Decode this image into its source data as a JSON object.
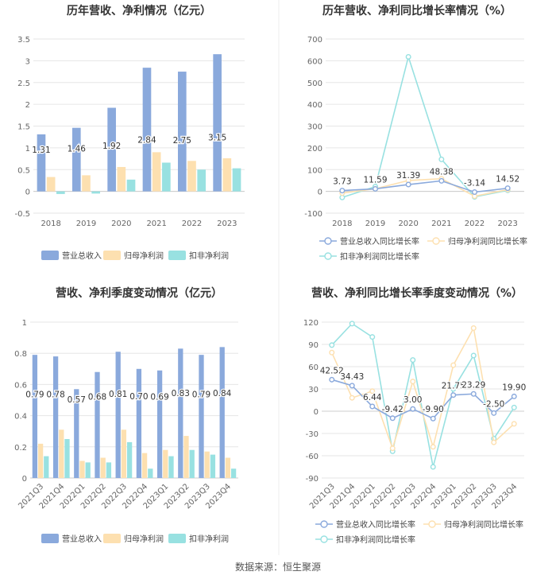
{
  "source": "数据来源：恒生聚源",
  "colors": {
    "revenue": "#8aa9dc",
    "net_profit": "#fde0b0",
    "deducted_profit": "#98e1e1",
    "axis_text": "#666666",
    "grid": "#e6e6e6",
    "title": "#333333"
  },
  "chart_data": [
    {
      "id": "annual-bars",
      "type": "bar",
      "title": "历年营收、净利情况（亿元）",
      "categories": [
        "2018",
        "2019",
        "2020",
        "2021",
        "2022",
        "2023"
      ],
      "series": [
        {
          "name": "营业总收入",
          "color": "#8aa9dc",
          "values": [
            1.31,
            1.46,
            1.92,
            2.84,
            2.75,
            3.15
          ],
          "labels": [
            "1.31",
            "1.46",
            "1.92",
            "2.84",
            "2.75",
            "3.15"
          ]
        },
        {
          "name": "归母净利润",
          "color": "#fde0b0",
          "values": [
            0.33,
            0.37,
            0.56,
            0.9,
            0.7,
            0.76
          ]
        },
        {
          "name": "扣非净利润",
          "color": "#98e1e1",
          "values": [
            -0.06,
            -0.05,
            0.27,
            0.66,
            0.5,
            0.53
          ]
        }
      ],
      "ylim": [
        -0.5,
        3.5
      ],
      "yticks": [
        "-0.5",
        "0",
        "0.5",
        "1",
        "1.5",
        "2",
        "2.5",
        "3",
        "3.5"
      ],
      "legend": "bottom",
      "grid": true
    },
    {
      "id": "annual-growth",
      "type": "line",
      "title": "历年营收、净利同比增长率情况（%）",
      "categories": [
        "2018",
        "2019",
        "2020",
        "2021",
        "2022",
        "2023"
      ],
      "series": [
        {
          "name": "营业总收入同比增长率",
          "color": "#8aa9dc",
          "values": [
            3.73,
            11.59,
            31.39,
            48.38,
            -3.14,
            14.52
          ],
          "labels": [
            "3.73",
            "11.59",
            "31.39",
            "48.38",
            "-3.14",
            "14.52"
          ]
        },
        {
          "name": "归母净利润同比增长率",
          "color": "#fde0b0",
          "values": [
            -8,
            12,
            50,
            58,
            -22,
            8
          ]
        },
        {
          "name": "扣非净利润同比增长率",
          "color": "#98e1e1",
          "values": [
            -28,
            22,
            618,
            147,
            -25,
            5
          ]
        }
      ],
      "ylim": [
        -100,
        700
      ],
      "yticks": [
        "-100",
        "0",
        "100",
        "200",
        "300",
        "400",
        "500",
        "600",
        "700"
      ],
      "legend": "bottom",
      "grid": true
    },
    {
      "id": "quarterly-bars",
      "type": "bar",
      "title": "营收、净利季度变动情况（亿元）",
      "categories": [
        "2021Q3",
        "2021Q4",
        "2022Q1",
        "2022Q2",
        "2022Q3",
        "2022Q4",
        "2023Q1",
        "2023Q2",
        "2023Q3",
        "2023Q4"
      ],
      "series": [
        {
          "name": "营业总收入",
          "color": "#8aa9dc",
          "values": [
            0.79,
            0.78,
            0.57,
            0.68,
            0.81,
            0.7,
            0.69,
            0.83,
            0.79,
            0.84
          ],
          "labels": [
            "0.79",
            "0.78",
            "0.57",
            "0.68",
            "0.81",
            "0.70",
            "0.69",
            "0.83",
            "0.79",
            "0.84"
          ]
        },
        {
          "name": "归母净利润",
          "color": "#fde0b0",
          "values": [
            0.22,
            0.31,
            0.11,
            0.13,
            0.31,
            0.16,
            0.18,
            0.27,
            0.17,
            0.13
          ]
        },
        {
          "name": "扣非净利润",
          "color": "#98e1e1",
          "values": [
            0.14,
            0.25,
            0.1,
            0.1,
            0.23,
            0.06,
            0.14,
            0.18,
            0.15,
            0.06
          ]
        }
      ],
      "ylim": [
        0,
        1
      ],
      "yticks": [
        "0",
        "0.2",
        "0.4",
        "0.6",
        "0.8",
        "1"
      ],
      "legend": "bottom",
      "grid": true
    },
    {
      "id": "quarterly-growth",
      "type": "line",
      "title": "营收、净利同比增长率季度变动情况（%）",
      "categories": [
        "2021Q3",
        "2021Q4",
        "2022Q1",
        "2022Q2",
        "2022Q3",
        "2022Q4",
        "2023Q1",
        "2023Q2",
        "2023Q3",
        "2023Q4"
      ],
      "series": [
        {
          "name": "营业总收入同比增长率",
          "color": "#8aa9dc",
          "values": [
            42.52,
            34.43,
            6.44,
            -9.42,
            3.0,
            -9.9,
            21.75,
            23.29,
            -2.5,
            19.9
          ],
          "labels": [
            "42.52",
            "34.43",
            "6.44",
            "-9.42",
            "3.00",
            "-9.90",
            "21.75",
            "23.29",
            "-2.50",
            "19.90"
          ]
        },
        {
          "name": "归母净利润同比增长率",
          "color": "#fde0b0",
          "values": [
            79,
            18,
            27,
            -50,
            40,
            -48,
            62,
            112,
            -42,
            -17
          ]
        },
        {
          "name": "扣非净利润同比增长率",
          "color": "#98e1e1",
          "values": [
            89,
            118,
            100,
            -54,
            69,
            -75,
            30,
            75,
            -37,
            5
          ]
        }
      ],
      "ylim": [
        -90,
        120
      ],
      "yticks": [
        "-90",
        "-60",
        "-30",
        "0",
        "30",
        "60",
        "90",
        "120"
      ],
      "legend": "bottom",
      "grid": true
    }
  ]
}
